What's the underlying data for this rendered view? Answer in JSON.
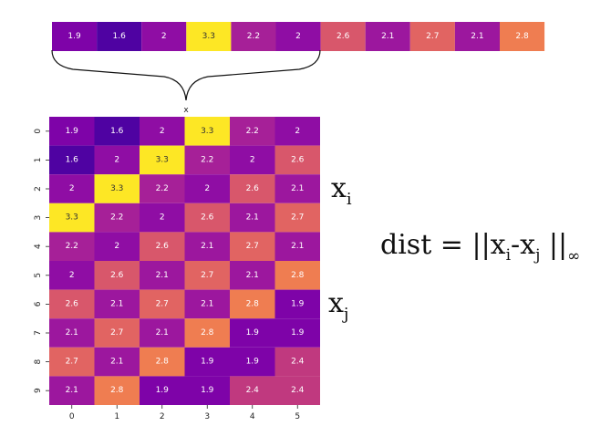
{
  "sequence": {
    "values": [
      1.9,
      1.6,
      2,
      3.3,
      2.2,
      2,
      2.6,
      2.1,
      2.7,
      2.1,
      2.8
    ]
  },
  "brace_label": "x",
  "matrix": {
    "rows": [
      [
        1.9,
        1.6,
        2,
        3.3,
        2.2,
        2
      ],
      [
        1.6,
        2,
        3.3,
        2.2,
        2,
        2.6
      ],
      [
        2,
        3.3,
        2.2,
        2,
        2.6,
        2.1
      ],
      [
        3.3,
        2.2,
        2,
        2.6,
        2.1,
        2.7
      ],
      [
        2.2,
        2,
        2.6,
        2.1,
        2.7,
        2.1
      ],
      [
        2,
        2.6,
        2.1,
        2.7,
        2.1,
        2.8
      ],
      [
        2.6,
        2.1,
        2.7,
        2.1,
        2.8,
        1.9
      ],
      [
        2.1,
        2.7,
        2.1,
        2.8,
        1.9,
        1.9
      ],
      [
        2.7,
        2.1,
        2.8,
        1.9,
        1.9,
        2.4
      ],
      [
        2.1,
        2.8,
        1.9,
        1.9,
        2.4,
        2.4
      ]
    ],
    "row_ticks": [
      "0",
      "1",
      "2",
      "3",
      "4",
      "5",
      "6",
      "7",
      "8",
      "9"
    ],
    "col_ticks": [
      "0",
      "1",
      "2",
      "3",
      "4",
      "5"
    ]
  },
  "labels": {
    "xi_base": "x",
    "xi_sub": "i",
    "xj_base": "x",
    "xj_sub": "j"
  },
  "formula": {
    "prefix": "dist = ||x",
    "sub_i": "i",
    "mid": "-x",
    "sub_j": "j",
    "close": " ||",
    "sub_inf": "∞"
  },
  "colors": {
    "1.6": "#4f02a2",
    "1.9": "#7e03a8",
    "2": "#8f0da4",
    "2.1": "#9c179e",
    "2.2": "#a62098",
    "2.4": "#c0397f",
    "2.6": "#d8576b",
    "2.7": "#e16462",
    "2.8": "#ef7d51",
    "3.3": "#fde725"
  }
}
